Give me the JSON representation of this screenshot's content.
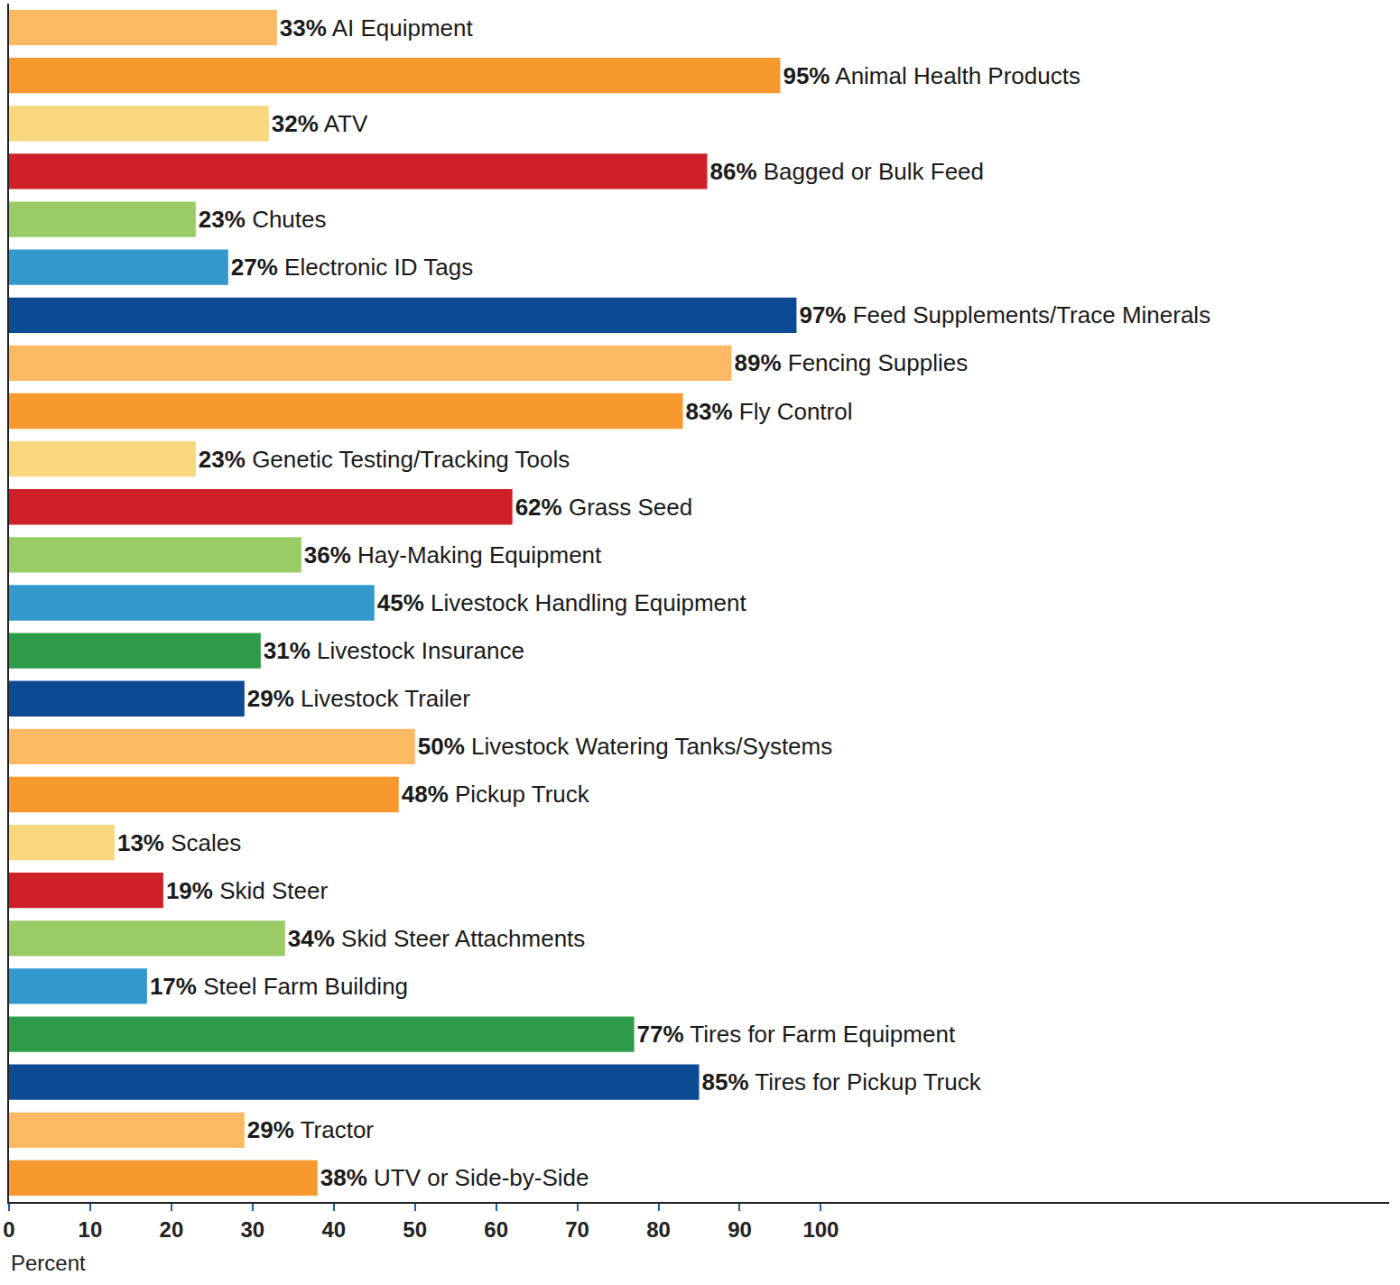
{
  "chart_data": {
    "type": "bar",
    "orientation": "horizontal",
    "x_label": "Percent",
    "categories": [
      "AI Equipment",
      "Animal Health Products",
      "ATV",
      "Bagged or Bulk Feed",
      "Chutes",
      "Electronic ID Tags",
      "Feed Supplements/Trace Minerals",
      "Fencing Supplies",
      "Fly Control",
      "Genetic Testing/Tracking Tools",
      "Grass Seed",
      "Hay-Making Equipment",
      "Livestock Handling Equipment",
      "Livestock Insurance",
      "Livestock Trailer",
      "Livestock Watering Tanks/Systems",
      "Pickup Truck",
      "Scales",
      "Skid Steer",
      "Skid Steer Attachments",
      "Steel Farm Building",
      "Tires for Farm Equipment",
      "Tires for Pickup Truck",
      "Tractor",
      "UTV or Side-by-Side"
    ],
    "values": [
      33,
      95,
      32,
      86,
      23,
      27,
      97,
      89,
      83,
      23,
      62,
      36,
      45,
      31,
      29,
      50,
      48,
      13,
      19,
      34,
      17,
      77,
      85,
      29,
      38
    ],
    "value_labels": [
      "33%",
      "95%",
      "32%",
      "86%",
      "23%",
      "27%",
      "97%",
      "89%",
      "83%",
      "23%",
      "62%",
      "36%",
      "45%",
      "31%",
      "29%",
      "50%",
      "48%",
      "13%",
      "19%",
      "34%",
      "17%",
      "77%",
      "85%",
      "29%",
      "38%"
    ],
    "colors": [
      "#FDB863",
      "#F7992E",
      "#F9D77E",
      "#CF2027",
      "#99CC66",
      "#3399CC",
      "#0C4A93",
      "#FDB863",
      "#F7992E",
      "#F9D77E",
      "#CF2027",
      "#99CC66",
      "#3399CC",
      "#2E9B48",
      "#0C4A93",
      "#FDB863",
      "#F7992E",
      "#F9D77E",
      "#CF2027",
      "#99CC66",
      "#3399CC",
      "#2E9B48",
      "#0C4A93",
      "#FDB863",
      "#F7992E"
    ],
    "xlim": [
      0,
      170
    ],
    "xticks": [
      0,
      10,
      20,
      30,
      40,
      50,
      60,
      70,
      80,
      90,
      100
    ],
    "grid": false,
    "data_labels": true,
    "tick_labels": "x"
  }
}
